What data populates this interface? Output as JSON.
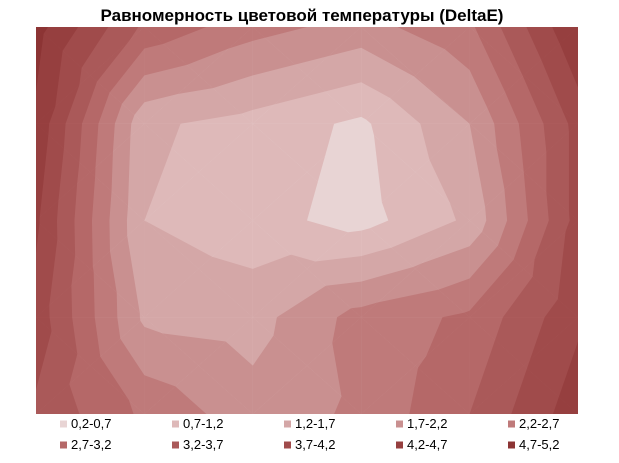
{
  "chart_data": {
    "type": "heatmap",
    "subtype": "contour-filled",
    "title": "Равномерность цветовой температуры (DeltaE)",
    "xlabel": "",
    "ylabel": "",
    "grid": false,
    "legend_position": "bottom",
    "range_labels": [
      "0,2-0,7",
      "0,7-1,2",
      "1,2-1,7",
      "1,7-2,2",
      "2,2-2,7",
      "2,7-3,2",
      "3,2-3,7",
      "3,7-4,2",
      "4,2-4,7",
      "4,7-5,2"
    ],
    "range_colors": [
      "#e8d4d4",
      "#deb9b9",
      "#d4a7a7",
      "#c99090",
      "#bf7a7a",
      "#b56868",
      "#aa5959",
      "#a04b4b",
      "#963f3f",
      "#8c3434"
    ],
    "grid_rows": 5,
    "grid_cols": 6,
    "values": [
      [
        4.9,
        3.1,
        2.4,
        2.0,
        2.6,
        4.7
      ],
      [
        4.6,
        1.3,
        1.0,
        0.6,
        1.7,
        3.9
      ],
      [
        4.3,
        1.2,
        0.9,
        0.5,
        1.3,
        3.9
      ],
      [
        4.0,
        1.6,
        1.5,
        2.4,
        2.8,
        4.1
      ],
      [
        3.6,
        2.6,
        1.9,
        2.3,
        3.2,
        4.5
      ]
    ]
  }
}
